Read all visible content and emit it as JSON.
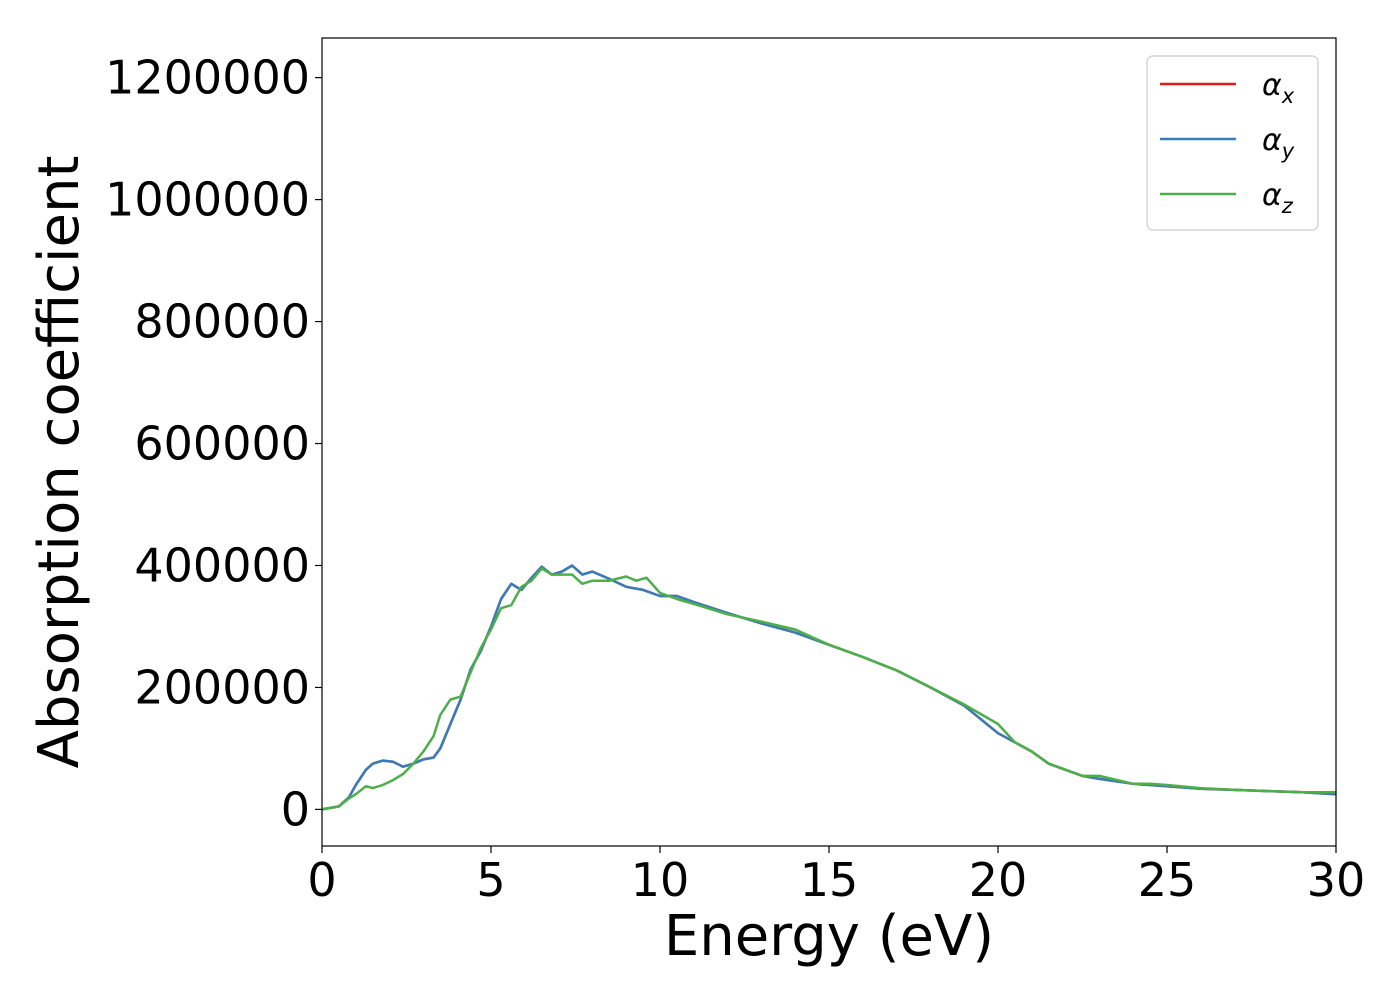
{
  "chart_data": {
    "type": "line",
    "xlabel": "Energy (eV)",
    "ylabel": "Absorption coefficient",
    "xlim": [
      0,
      30
    ],
    "ylim": [
      -60000,
      1265000
    ],
    "xticks": [
      "0",
      "5",
      "10",
      "15",
      "20",
      "25",
      "30"
    ],
    "yticks": [
      "0",
      "200000",
      "400000",
      "600000",
      "800000",
      "1000000",
      "1200000"
    ],
    "grid": false,
    "legend": "top-right",
    "series": [
      {
        "name": "α_x",
        "legend_main": "α",
        "legend_sub": "x",
        "color": "#e41a1c",
        "x": [
          0,
          0.5,
          0.8,
          1.0,
          1.3,
          1.5,
          1.8,
          2.1,
          2.4,
          2.7,
          3.0,
          3.3,
          3.5,
          3.8,
          4.1,
          4.4,
          4.7,
          5.0,
          5.3,
          5.6,
          5.9,
          6.2,
          6.5,
          6.8,
          7.1,
          7.4,
          7.7,
          8.0,
          8.5,
          9.0,
          9.5,
          10.0,
          10.5,
          11.0,
          12.0,
          13.0,
          14.0,
          15.0,
          16.0,
          17.0,
          18.0,
          19.0,
          20.0,
          20.5,
          21.0,
          21.5,
          22.0,
          22.5,
          23.0,
          24.0,
          25.0,
          26.0,
          27.0,
          28.0,
          29.0,
          30.0
        ],
        "y": [
          0,
          5000,
          20000,
          40000,
          65000,
          75000,
          80000,
          78000,
          70000,
          75000,
          82000,
          85000,
          100000,
          140000,
          180000,
          230000,
          260000,
          300000,
          345000,
          370000,
          360000,
          380000,
          398000,
          385000,
          390000,
          400000,
          385000,
          390000,
          378000,
          365000,
          360000,
          350000,
          350000,
          340000,
          322000,
          305000,
          290000,
          270000,
          250000,
          228000,
          200000,
          170000,
          125000,
          110000,
          95000,
          75000,
          65000,
          55000,
          50000,
          42000,
          38000,
          34000,
          32000,
          30000,
          28000,
          25000
        ]
      },
      {
        "name": "α_y",
        "legend_main": "α",
        "legend_sub": "y",
        "color": "#377eb8",
        "x": [
          0,
          0.5,
          0.8,
          1.0,
          1.3,
          1.5,
          1.8,
          2.1,
          2.4,
          2.7,
          3.0,
          3.3,
          3.5,
          3.8,
          4.1,
          4.4,
          4.7,
          5.0,
          5.3,
          5.6,
          5.9,
          6.2,
          6.5,
          6.8,
          7.1,
          7.4,
          7.7,
          8.0,
          8.5,
          9.0,
          9.5,
          10.0,
          10.5,
          11.0,
          12.0,
          13.0,
          14.0,
          15.0,
          16.0,
          17.0,
          18.0,
          19.0,
          20.0,
          20.5,
          21.0,
          21.5,
          22.0,
          22.5,
          23.0,
          24.0,
          25.0,
          26.0,
          27.0,
          28.0,
          29.0,
          30.0
        ],
        "y": [
          0,
          5000,
          20000,
          40000,
          65000,
          75000,
          80000,
          78000,
          70000,
          75000,
          82000,
          85000,
          100000,
          140000,
          180000,
          230000,
          260000,
          300000,
          345000,
          370000,
          360000,
          380000,
          398000,
          385000,
          390000,
          400000,
          385000,
          390000,
          378000,
          365000,
          360000,
          350000,
          350000,
          340000,
          322000,
          305000,
          290000,
          270000,
          250000,
          228000,
          200000,
          170000,
          125000,
          110000,
          95000,
          75000,
          65000,
          55000,
          50000,
          42000,
          38000,
          34000,
          32000,
          30000,
          28000,
          25000
        ]
      },
      {
        "name": "α_z",
        "legend_main": "α",
        "legend_sub": "z",
        "color": "#4daf4a",
        "x": [
          0,
          0.5,
          0.8,
          1.0,
          1.3,
          1.5,
          1.8,
          2.1,
          2.4,
          2.7,
          3.0,
          3.3,
          3.5,
          3.8,
          4.1,
          4.4,
          4.7,
          5.0,
          5.3,
          5.6,
          5.9,
          6.2,
          6.5,
          6.8,
          7.1,
          7.4,
          7.7,
          8.0,
          8.5,
          9.0,
          9.3,
          9.6,
          10.0,
          10.5,
          11.0,
          12.0,
          13.0,
          14.0,
          15.0,
          16.0,
          17.0,
          18.0,
          19.0,
          20.0,
          20.5,
          21.0,
          21.5,
          22.0,
          22.5,
          23.0,
          24.0,
          24.5,
          25.0,
          26.0,
          27.0,
          28.0,
          29.0,
          30.0
        ],
        "y": [
          0,
          5000,
          18000,
          25000,
          38000,
          35000,
          40000,
          48000,
          58000,
          75000,
          95000,
          120000,
          155000,
          180000,
          185000,
          225000,
          265000,
          295000,
          330000,
          335000,
          365000,
          375000,
          395000,
          385000,
          385000,
          385000,
          370000,
          375000,
          375000,
          382000,
          375000,
          380000,
          355000,
          345000,
          337000,
          320000,
          308000,
          295000,
          270000,
          250000,
          228000,
          200000,
          172000,
          140000,
          110000,
          95000,
          75000,
          65000,
          55000,
          55000,
          42000,
          42000,
          40000,
          35000,
          32000,
          30000,
          28000,
          28000
        ]
      }
    ]
  }
}
